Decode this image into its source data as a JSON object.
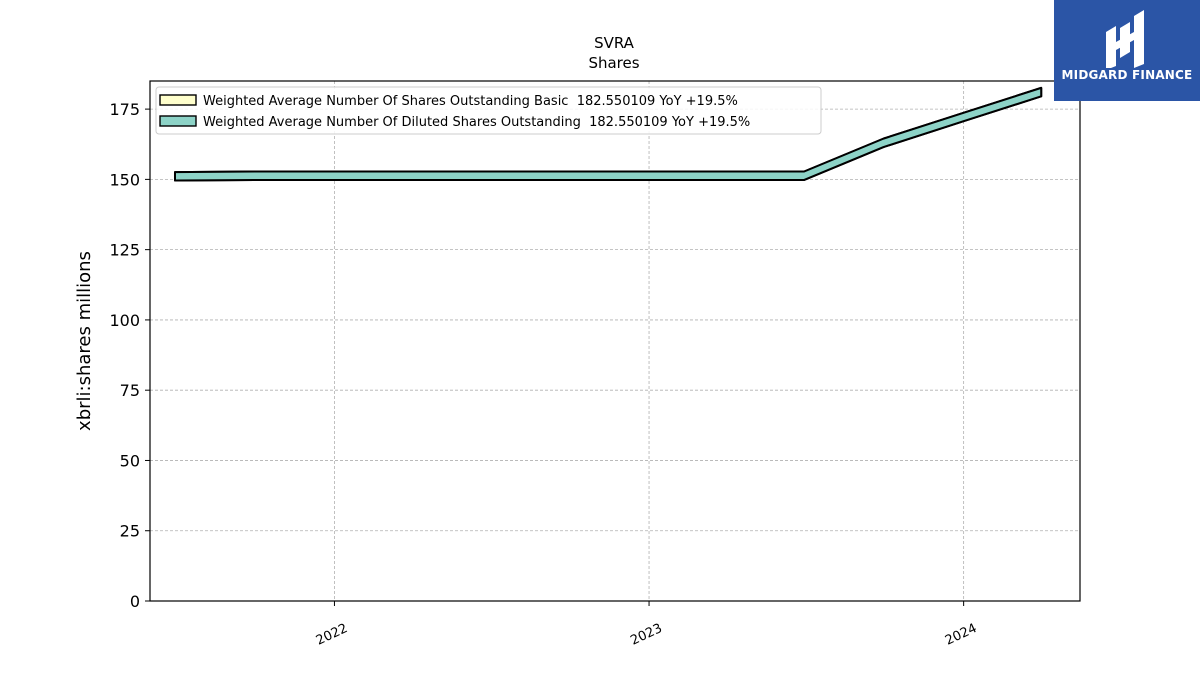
{
  "chart_data": {
    "type": "area",
    "title": "SVRA",
    "subtitle": "Shares",
    "ylabel": "xbrli:shares millions",
    "xlabel": "",
    "x_ticks": [
      "2022",
      "2023",
      "2024"
    ],
    "y_ticks": [
      "0",
      "25",
      "50",
      "75",
      "100",
      "125",
      "150",
      "175"
    ],
    "ylim": [
      0,
      185
    ],
    "xlim": [
      "2021-06-01",
      "2024-05-15"
    ],
    "grid": true,
    "legend_position": "top-left",
    "series": [
      {
        "name": "Weighted Average Number Of Shares Outstanding Basic  182.550109 YoY +19.5%",
        "color": "#ffffcc",
        "x": [
          "2021-06-30",
          "2021-09-30",
          "2021-12-31",
          "2022-03-31",
          "2022-06-30",
          "2022-09-30",
          "2022-12-31",
          "2023-03-31",
          "2023-06-30",
          "2023-09-30",
          "2023-12-31",
          "2024-03-31"
        ],
        "values": [
          152.6,
          152.8,
          152.8,
          152.8,
          152.8,
          152.8,
          152.8,
          152.8,
          152.8,
          164.5,
          173.6,
          182.55
        ]
      },
      {
        "name": "Weighted Average Number Of Diluted Shares Outstanding  182.550109 YoY +19.5%",
        "color": "#8dd3c7",
        "x": [
          "2021-06-30",
          "2021-09-30",
          "2021-12-31",
          "2022-03-31",
          "2022-06-30",
          "2022-09-30",
          "2022-12-31",
          "2023-03-31",
          "2023-06-30",
          "2023-09-30",
          "2023-12-31",
          "2024-03-31"
        ],
        "values": [
          152.6,
          152.8,
          152.8,
          152.8,
          152.8,
          152.8,
          152.8,
          152.8,
          152.8,
          164.5,
          173.6,
          182.55
        ]
      }
    ]
  },
  "logo": {
    "text": "MIDGARD FINANCE",
    "background": "#2b55a6"
  }
}
